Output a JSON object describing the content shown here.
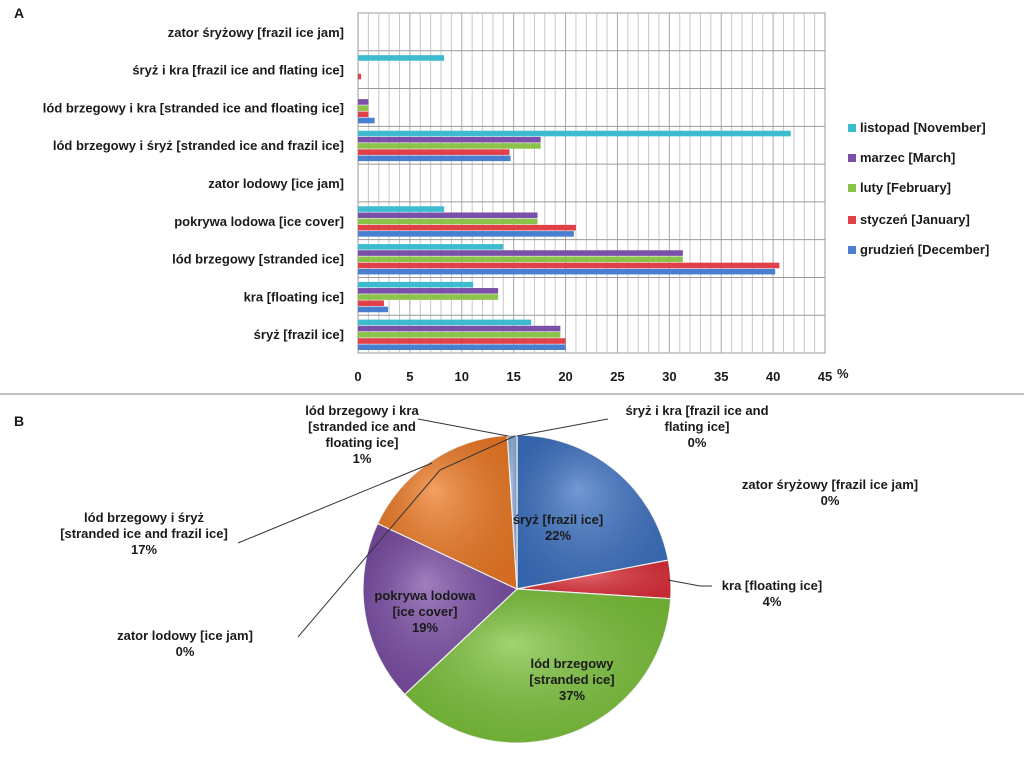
{
  "panels": {
    "a_label": "A",
    "b_label": "B"
  },
  "chart_data": [
    {
      "type": "bar",
      "orientation": "horizontal",
      "categories": [
        "zator śryżowy [frazil ice jam]",
        "śryż i kra [frazil ice and flating ice]",
        "lód brzegowy i kra [stranded ice and floating ice]",
        "lód brzegowy i śryż [stranded ice and frazil ice]",
        "zator lodowy [ice jam]",
        "pokrywa lodowa [ice cover]",
        "lód brzegowy [stranded ice]",
        "kra [floating ice]",
        "śryż [frazil ice]"
      ],
      "series": [
        {
          "name": "listopad [November]",
          "color": "#3dbcd0",
          "values": [
            0,
            8.3,
            0,
            41.7,
            0,
            8.3,
            14,
            11.1,
            16.7
          ]
        },
        {
          "name": "marzec [March]",
          "color": "#7a50a8",
          "values": [
            0,
            0,
            1,
            17.6,
            0,
            17.3,
            31.3,
            13.5,
            19.5
          ]
        },
        {
          "name": "luty [February]",
          "color": "#8bc34a",
          "values": [
            0,
            0,
            1,
            17.6,
            0,
            17.3,
            31.3,
            13.5,
            19.5
          ]
        },
        {
          "name": "styczeń [January]",
          "color": "#e04048",
          "values": [
            0,
            0.3,
            1,
            14.6,
            0,
            21,
            40.6,
            2.5,
            20
          ]
        },
        {
          "name": "grudzień [December]",
          "color": "#4a7fd0",
          "values": [
            0,
            0,
            1.6,
            14.7,
            0,
            20.8,
            40.2,
            2.9,
            20
          ]
        }
      ],
      "xlim": [
        0,
        45
      ],
      "xticks": [
        "0",
        "5",
        "10",
        "15",
        "20",
        "25",
        "30",
        "35",
        "40",
        "45"
      ],
      "x_unit": "%",
      "grid": true,
      "legend_placement": "right"
    },
    {
      "type": "pie",
      "slices": [
        {
          "label": "śryż [frazil ice]",
          "pct_label": "22%",
          "value": 22,
          "color": "#3d72c4"
        },
        {
          "label": "kra [floating ice]",
          "pct_label": "4%",
          "value": 4,
          "color": "#e0303a"
        },
        {
          "label": "lód brzegowy [stranded ice]",
          "pct_label": "37%",
          "value": 37,
          "color": "#7cc43a"
        },
        {
          "label": "pokrywa lodowa [ice cover]",
          "pct_label": "19%",
          "value": 19,
          "color": "#7b4da6"
        },
        {
          "label": "zator lodowy [ice jam]",
          "pct_label": "0%",
          "value": 0,
          "color": "#3dbcd0"
        },
        {
          "label": "lód brzegowy i śryż [stranded ice and frazil ice]",
          "pct_label": "17%",
          "value": 17,
          "color": "#f07a24"
        },
        {
          "label": "lód brzegowy i kra [stranded ice and floating ice]",
          "pct_label": "1%",
          "value": 1,
          "color": "#8fb0dc"
        },
        {
          "label": "śryż i kra [frazil ice and flating ice]",
          "pct_label": "0%",
          "value": 0,
          "color": "#d04080"
        },
        {
          "label": "zator śryżowy [frazil ice jam]",
          "pct_label": "0%",
          "value": 0,
          "color": "#9ad24a"
        }
      ]
    }
  ]
}
